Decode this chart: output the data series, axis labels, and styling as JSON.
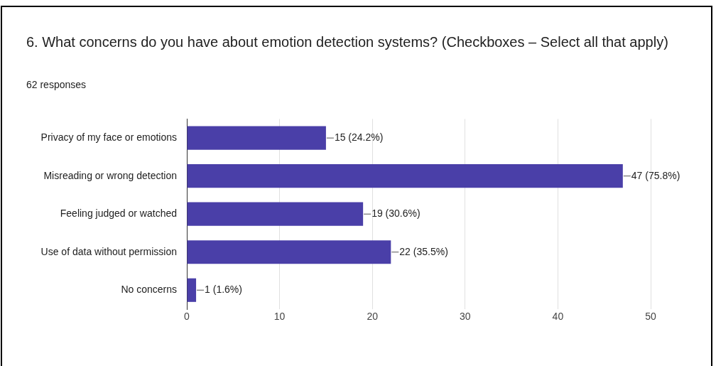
{
  "chart_data": {
    "type": "bar",
    "orientation": "horizontal",
    "title": "6. What concerns do you have about emotion detection systems?  (Checkboxes – Select all that apply)",
    "subtitle": "62 responses",
    "categories": [
      "Privacy of my face or emotions",
      "Misreading or wrong detection",
      "Feeling judged or watched",
      "Use of data without permission",
      "No concerns"
    ],
    "values": [
      15,
      47,
      19,
      22,
      1
    ],
    "color": "#4a3fa8",
    "value_labels": [
      "15 (24.2%)",
      "47 (75.8%)",
      "19 (30.6%)",
      "22 (35.5%)",
      "1 (1.6%)"
    ],
    "xlim": [
      0,
      50
    ],
    "xticks": [
      0,
      10,
      20,
      30,
      40,
      50
    ],
    "grid": "x",
    "legend": false
  }
}
